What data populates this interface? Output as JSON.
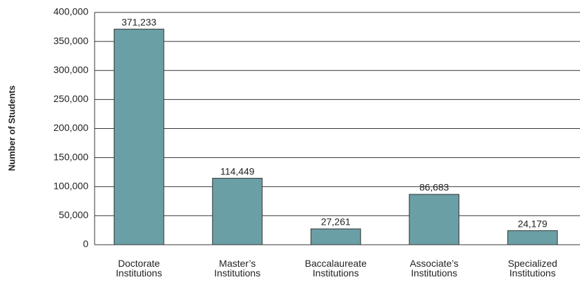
{
  "chart_data": {
    "type": "bar",
    "y_axis_label": "Number of Students",
    "categories": [
      "Doctorate Institutions",
      "Master’s Institutions",
      "Baccalaureate Institutions",
      "Associate’s Institutions",
      "Specialized Institutions"
    ],
    "values": [
      371233,
      114449,
      27261,
      86683,
      24179
    ],
    "value_labels": [
      "371,233",
      "114,449",
      "27,261",
      "86,683",
      "24,179"
    ],
    "color": "#6a9fa5",
    "ylim": [
      0,
      400000
    ],
    "yticks": [
      0,
      {
        "value": 50000,
        "label": "50,000"
      },
      {
        "value": 100000,
        "label": "100,000"
      },
      {
        "value": 150000,
        "label": "150,000"
      },
      {
        "value": 200000,
        "label": "200,000"
      },
      {
        "value": 250000,
        "label": "250,000"
      },
      {
        "value": 300000,
        "label": "300,000"
      },
      {
        "value": 350000,
        "label": "350,000"
      },
      {
        "value": 400000,
        "label": "400,000"
      }
    ],
    "grid": true
  }
}
